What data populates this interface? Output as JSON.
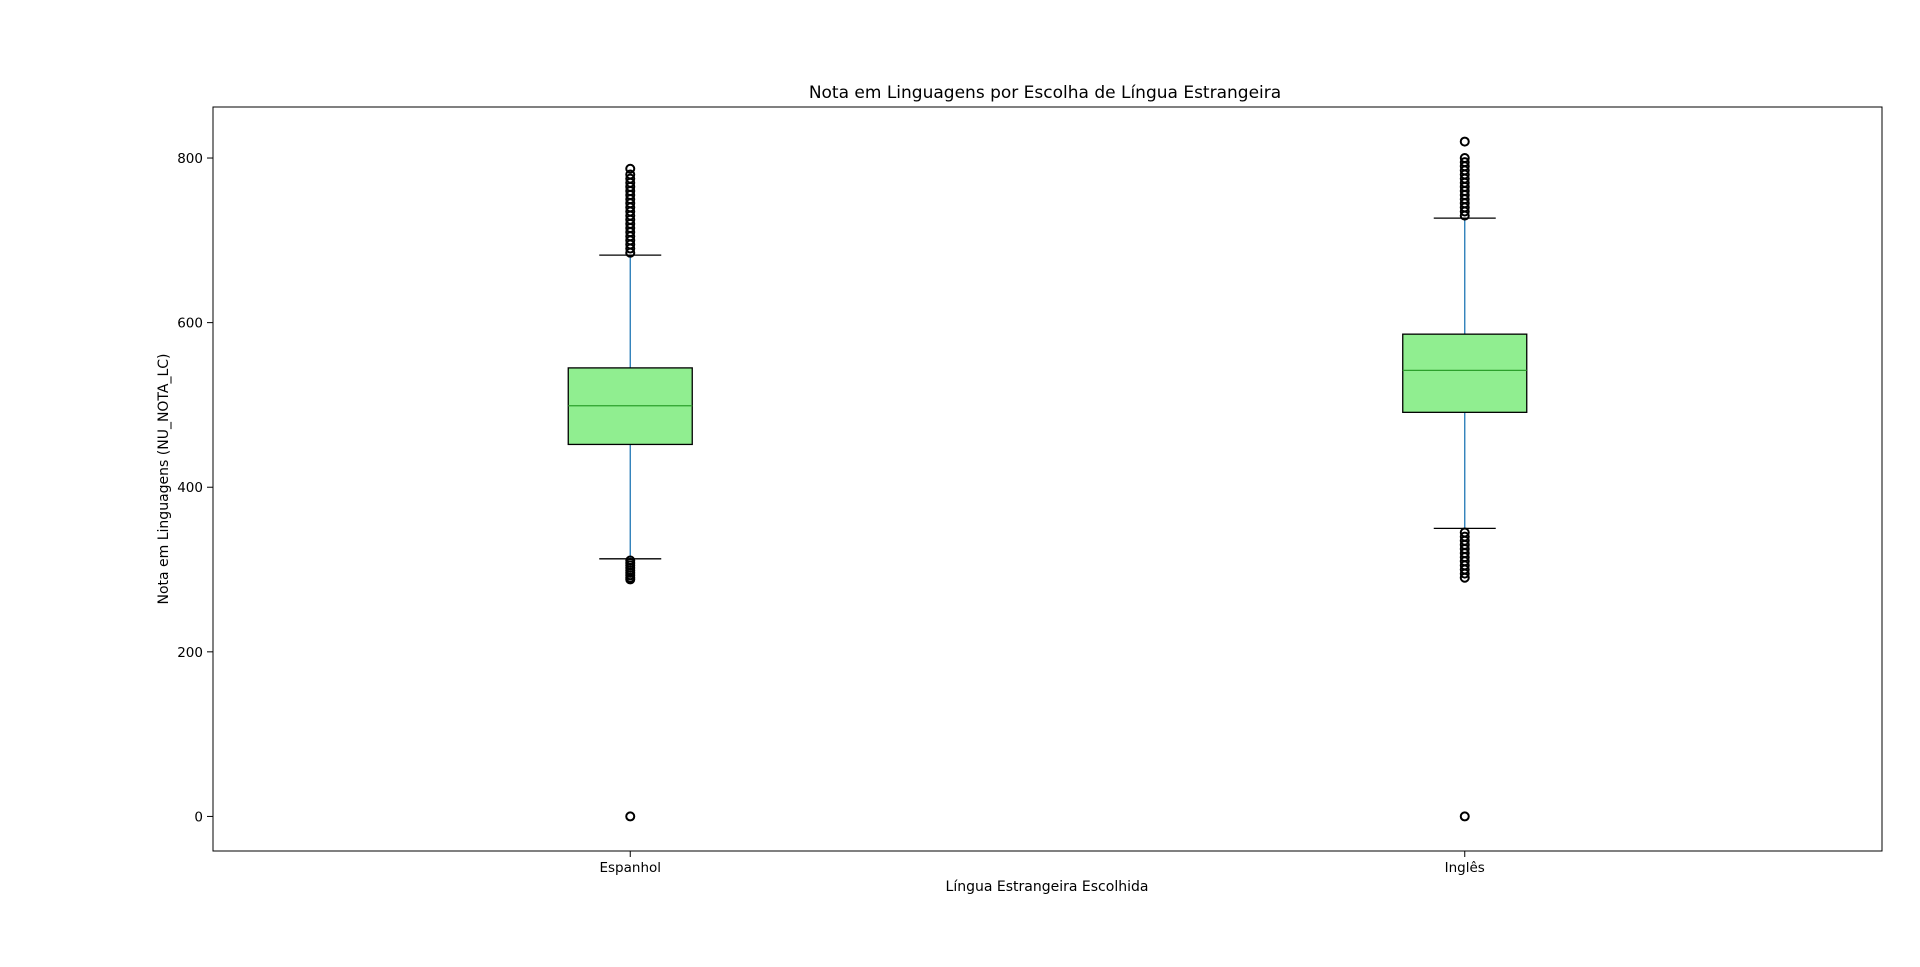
{
  "chart_data": {
    "type": "box",
    "title": "Nota em Linguagens por Escolha de Língua Estrangeira",
    "xlabel": "Língua Estrangeira Escolhida",
    "ylabel": "Nota em Linguagens (NU_NOTA_LC)",
    "ylim": [
      -42,
      862
    ],
    "yticks": [
      0,
      200,
      400,
      600,
      800
    ],
    "grid": false,
    "categories": [
      "Espanhol",
      "Inglês"
    ],
    "boxes": [
      {
        "name": "Espanhol",
        "whisker_low": 313,
        "q1": 452,
        "median": 499,
        "q3": 545,
        "whisker_high": 682,
        "outliers_low": [
          0,
          288,
          290,
          293,
          296,
          299,
          302,
          305,
          308,
          311
        ],
        "outliers_high": [
          685,
          690,
          695,
          700,
          705,
          710,
          715,
          720,
          725,
          730,
          735,
          740,
          745,
          750,
          755,
          760,
          765,
          770,
          775,
          780,
          787
        ]
      },
      {
        "name": "Inglês",
        "whisker_low": 350,
        "q1": 491,
        "median": 542,
        "q3": 586,
        "whisker_high": 727,
        "outliers_low": [
          0,
          290,
          295,
          300,
          305,
          310,
          315,
          320,
          325,
          330,
          335,
          340,
          345
        ],
        "outliers_high": [
          730,
          735,
          740,
          745,
          750,
          755,
          760,
          765,
          770,
          775,
          780,
          785,
          790,
          795,
          800,
          820
        ]
      }
    ],
    "colors": {
      "box_fill": "#90ee90",
      "box_edge": "#000000",
      "median": "#2ca02c",
      "whisker": "#1f77b4",
      "cap": "#000000",
      "flier": "#000000"
    }
  }
}
